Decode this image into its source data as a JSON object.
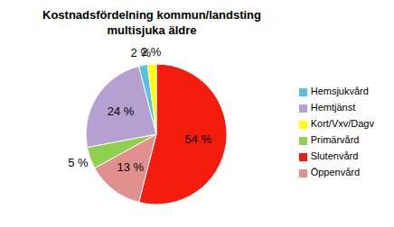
{
  "chart_data": {
    "type": "pie",
    "title": "Kostnadsfördelning kommun/landsting multisjuka äldre",
    "categories": [
      "Slutenvård",
      "Öppenvård",
      "Primärvård",
      "Hemtjänst",
      "Hemsjukvård",
      "Kort/Vxv/Dagv"
    ],
    "values": [
      54,
      13,
      5,
      24,
      2,
      2
    ],
    "value_labels": [
      "54 %",
      "13 %",
      "5 %",
      "24 %",
      "2 %",
      "2 %"
    ],
    "colors": [
      "#f41c0c",
      "#e2908e",
      "#8fd14f",
      "#b4a1d1",
      "#56c1e3",
      "#ffff00"
    ],
    "data_labels": true,
    "legend": "right"
  }
}
